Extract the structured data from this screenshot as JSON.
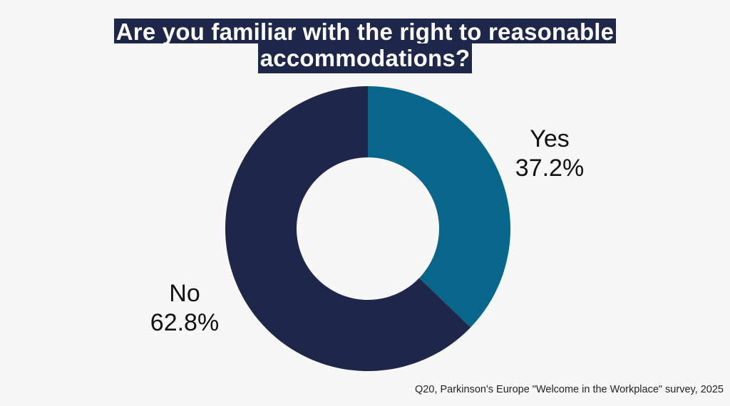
{
  "title": {
    "line1": "Are you familiar with the right to reasonable",
    "line2": "accommodations?"
  },
  "labels": {
    "yes": {
      "name": "Yes",
      "value": "37.2%"
    },
    "no": {
      "name": "No",
      "value": "62.8%"
    }
  },
  "source": "Q20, Parkinson's Europe \"Welcome in the Workplace\" survey, 2025",
  "colors": {
    "background": "#f7f7f8",
    "title_bg": "#1e2749",
    "yes": "#07668a",
    "no": "#1e2749"
  },
  "chart_data": {
    "type": "pie",
    "subtype": "donut",
    "title": "Are you familiar with the right to reasonable accommodations?",
    "categories": [
      "Yes",
      "No"
    ],
    "values": [
      37.2,
      62.8
    ],
    "unit": "%",
    "colors": [
      "#07668a",
      "#1e2749"
    ],
    "start_angle": "12 o'clock, clockwise",
    "legend": "none (direct labels)",
    "source": "Q20, Parkinson's Europe \"Welcome in the Workplace\" survey, 2025"
  }
}
